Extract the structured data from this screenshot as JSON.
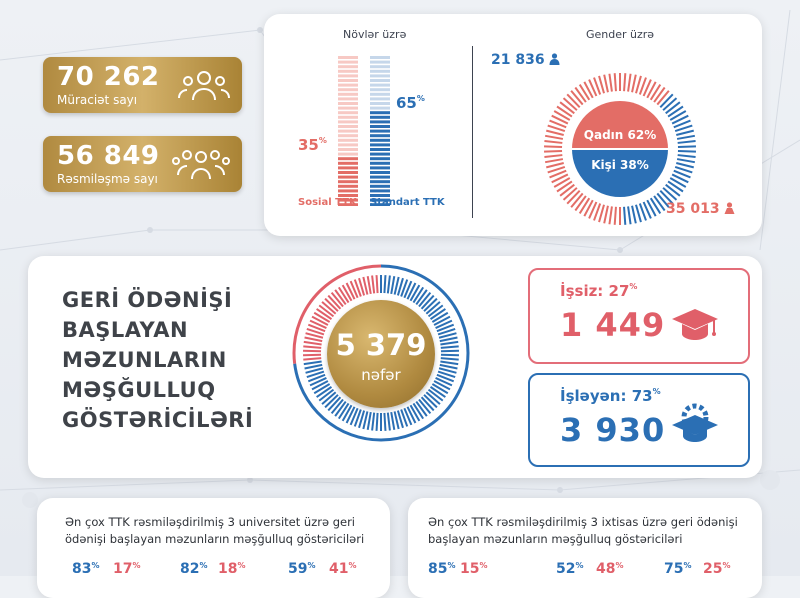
{
  "stats": {
    "applications": {
      "value": "70 262",
      "label": "Müraciət sayı",
      "icon": "people-group-icon"
    },
    "registrations": {
      "value": "56 849",
      "label": "Rəsmiləşmə sayı",
      "icon": "people-group-icon"
    }
  },
  "types": {
    "title": "Növlər üzrə",
    "social": {
      "label": "Sosial TTK",
      "percent": "35",
      "color": "#e36d66"
    },
    "standard": {
      "label": "Standart TTK",
      "percent": "65",
      "color": "#2b6fb4"
    }
  },
  "gender": {
    "title": "Gender üzrə",
    "female": {
      "label": "Qadın",
      "percent": "62",
      "count": "35 013",
      "color": "#e36d66",
      "icon": "woman-icon"
    },
    "male": {
      "label": "Kişi",
      "percent": "38",
      "count": "21 836",
      "color": "#2b6fb4",
      "icon": "man-icon"
    }
  },
  "employment": {
    "title_lines": [
      "GERİ ÖDƏNİŞİ",
      "BAŞLAYAN",
      "MƏZUNLARIN",
      "MƏŞĞULLUQ",
      "GÖSTƏRİCİLƏRİ"
    ],
    "total": "5 379",
    "total_unit": "nəfər",
    "unemployed": {
      "label": "İşsiz:",
      "percent": "27",
      "value": "1 449",
      "icon": "graduation-cap-icon"
    },
    "employed": {
      "label": "İşləyən:",
      "percent": "73",
      "value": "3 930",
      "icon": "gear-graduation-cap-icon"
    }
  },
  "universities": {
    "title": "Ən çox TTK rəsmiləşdirilmiş 3 universitet üzrə geri ödənişi başlayan məzunların məşğulluq göstəriciləri",
    "pairs": [
      [
        "83",
        "17"
      ],
      [
        "82",
        "18"
      ],
      [
        "59",
        "41"
      ]
    ]
  },
  "specialties": {
    "title": "Ən çox TTK rəsmiləşdirilmiş 3 ixtisas üzrə geri ödənişi başlayan məzunların məşğulluq göstəriciləri",
    "pairs": [
      [
        "85",
        "15"
      ],
      [
        "52",
        "48"
      ],
      [
        "75",
        "25"
      ]
    ]
  }
}
